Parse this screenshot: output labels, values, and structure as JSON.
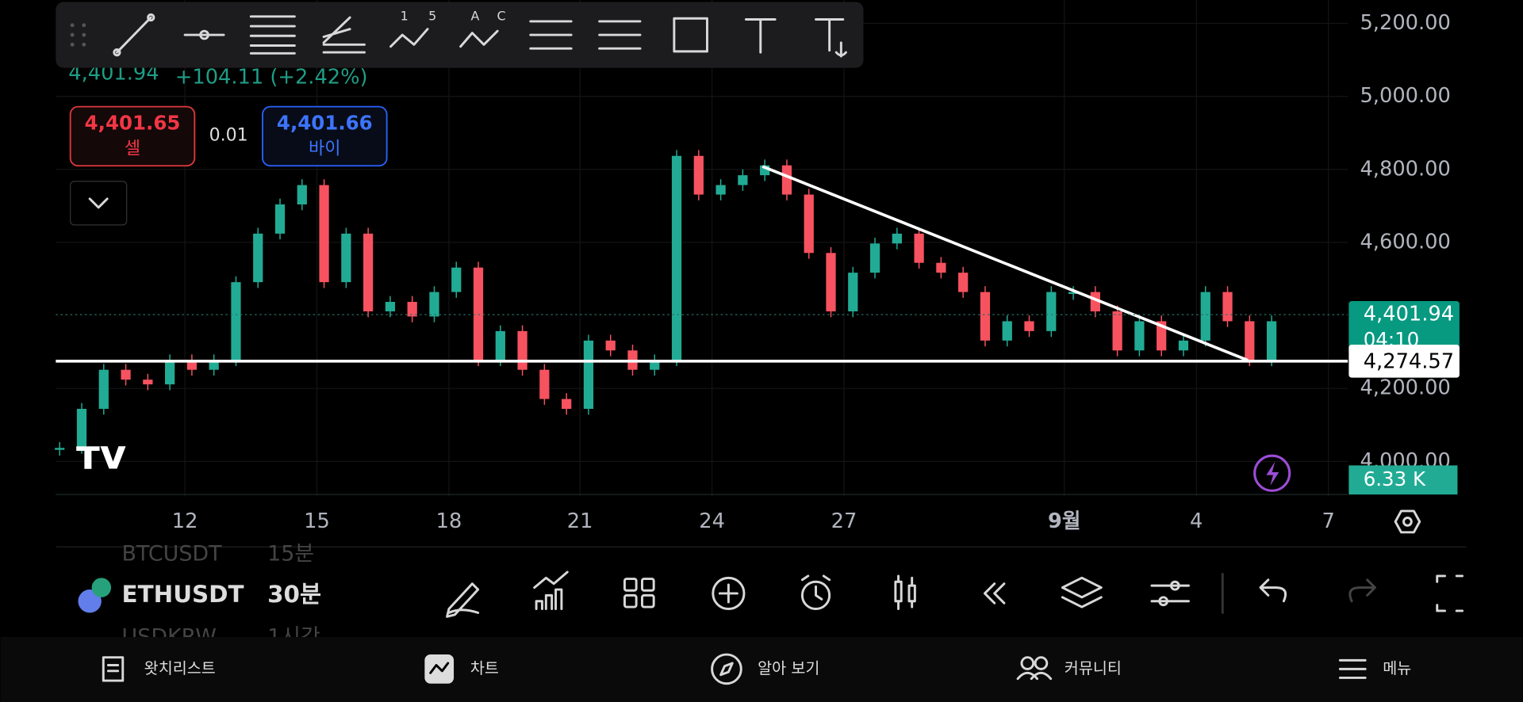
{
  "header": {
    "price": "4,401.94",
    "change": "+104.11 (+2.42%)"
  },
  "trade": {
    "sell_price": "4,401.65",
    "sell_label": "셀",
    "spread": "0.01",
    "buy_price": "4,401.66",
    "buy_label": "바이"
  },
  "toolbar_labels": [
    "1",
    "5",
    "A",
    "C"
  ],
  "chart_data": {
    "type": "candlestick",
    "closes": [
      4037,
      4144,
      4251,
      4224,
      4211,
      4277,
      4251,
      4277,
      4491,
      4624,
      4704,
      4757,
      4491,
      4624,
      4411,
      4437,
      4397,
      4464,
      4531,
      4277,
      4357,
      4251,
      4171,
      4144,
      4331,
      4304,
      4251,
      4277,
      4837,
      4731,
      4757,
      4784,
      4811,
      4731,
      4571,
      4411,
      4517,
      4597,
      4624,
      4544,
      4517,
      4464,
      4331,
      4384,
      4357,
      4464,
      4464,
      4411,
      4304,
      4384,
      4304,
      4331,
      4464,
      4384,
      4277,
      4384
    ],
    "ylim": [
      3904,
      5264
    ],
    "yticks": [
      {
        "value": 5200,
        "label": "5,200.00"
      },
      {
        "value": 5000,
        "label": "5,000.00"
      },
      {
        "value": 4800,
        "label": "4,800.00"
      },
      {
        "value": 4600,
        "label": "4,600.00"
      },
      {
        "value": 4200,
        "label": "4,200.00"
      },
      {
        "value": 4000,
        "label": "4,000.00"
      }
    ],
    "x_labels": [
      "12",
      "15",
      "18",
      "21",
      "24",
      "27",
      "9월",
      "4",
      "7"
    ],
    "trendline": [
      4808,
      4277
    ],
    "last_price": {
      "value": 4401.94,
      "label": "4,401.94"
    },
    "countdown": "04:10",
    "line_price": {
      "value": 4274.57,
      "label": "4,274.57"
    },
    "volume": "6.33 K"
  },
  "symbols": [
    {
      "name": "BTCUSDT",
      "interval": "15분"
    },
    {
      "name": "ETHUSDT",
      "interval": "30분"
    },
    {
      "name": "USDKRW",
      "interval": "1시간"
    }
  ],
  "nav": [
    "왓치리스트",
    "차트",
    "알아 보기",
    "커뮤니티",
    "메뉴"
  ]
}
